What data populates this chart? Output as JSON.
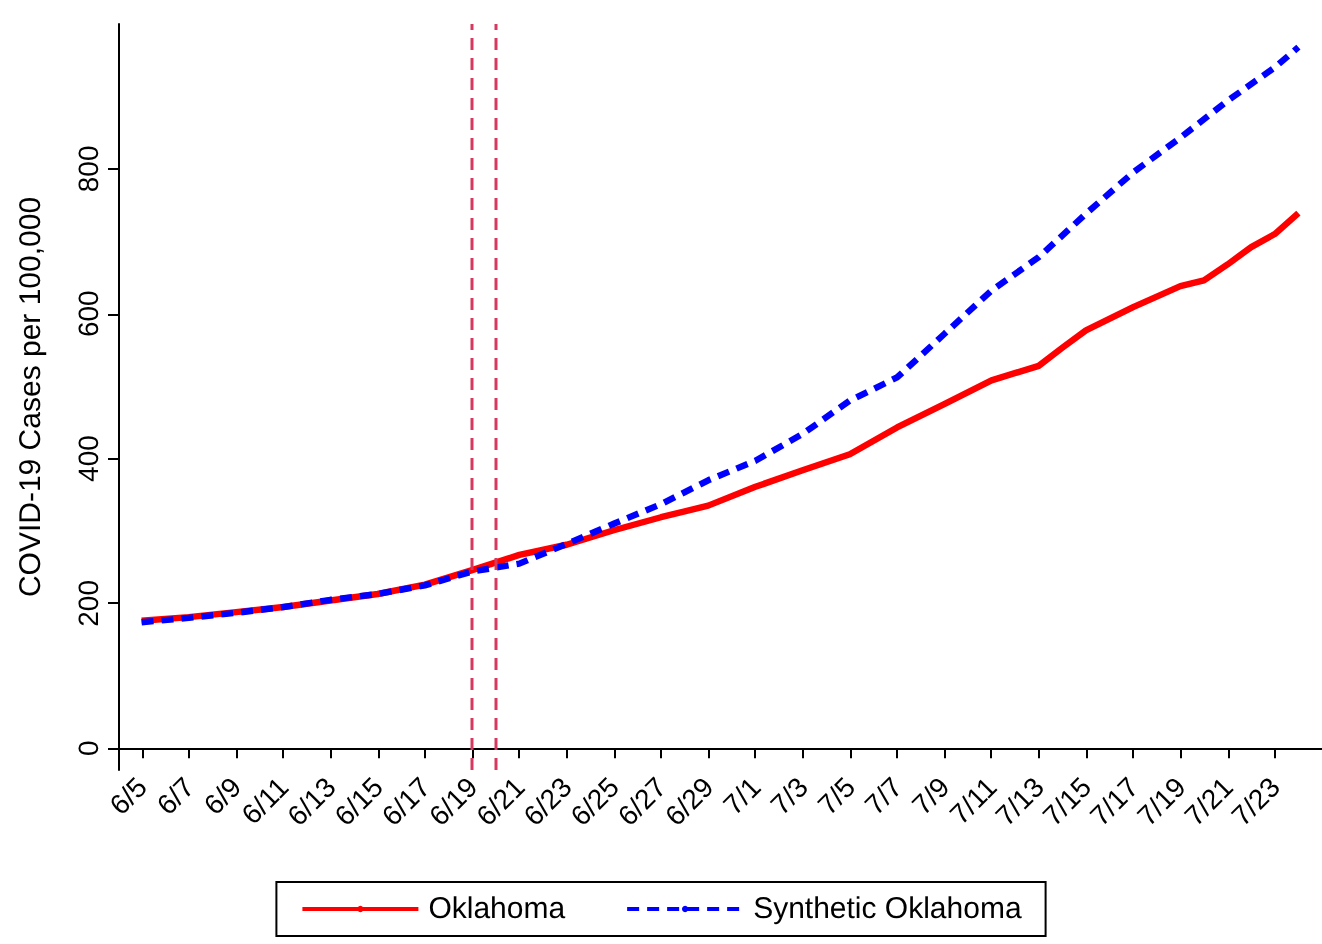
{
  "chart_data": {
    "type": "line",
    "ylabel": "COVID-19 Cases per 100,000",
    "series": [
      {
        "name": "Oklahoma",
        "color": "#ff0000",
        "line_style": "solid",
        "x": [
          "--06-05",
          "--06-07",
          "--06-09",
          "--06-11",
          "--06-13",
          "--06-15",
          "--06-17",
          "--06-19",
          "--06-21",
          "--06-23",
          "--06-25",
          "--06-27",
          "--06-29",
          "--07-01",
          "--07-03",
          "--07-05",
          "--07-07",
          "--07-09",
          "--07-11",
          "--07-13",
          "--07-14",
          "--07-15",
          "--07-17",
          "--07-19",
          "--07-20",
          "--07-21",
          "--07-22",
          "--07-23",
          "--07-24"
        ],
        "values": [
          176,
          181,
          188,
          195,
          204,
          213,
          226,
          246,
          267,
          281,
          301,
          319,
          335,
          361,
          384,
          406,
          443,
          475,
          508,
          528,
          553,
          577,
          609,
          638,
          646,
          668,
          692,
          710,
          739
        ]
      },
      {
        "name": "Synthetic Oklahoma",
        "color": "#0000ff",
        "line_style": "dashed",
        "x": [
          "--06-05",
          "--06-07",
          "--06-09",
          "--06-11",
          "--06-13",
          "--06-15",
          "--06-17",
          "--06-19",
          "--06-21",
          "--06-23",
          "--06-25",
          "--06-27",
          "--06-29",
          "--07-01",
          "--07-03",
          "--07-05",
          "--07-07",
          "--07-09",
          "--07-11",
          "--07-13",
          "--07-15",
          "--07-17",
          "--07-19",
          "--07-21",
          "--07-23",
          "--07-24"
        ],
        "values": [
          174,
          180,
          187,
          195,
          205,
          213,
          225,
          244,
          255,
          282,
          310,
          337,
          370,
          397,
          434,
          480,
          512,
          572,
          632,
          678,
          738,
          795,
          843,
          894,
          940,
          968
        ]
      }
    ],
    "xlim": [
      "--06-04",
      "--07-25"
    ],
    "xticks": [
      {
        "value": "--06-05",
        "label": "6/5"
      },
      {
        "value": "--06-07",
        "label": "6/7"
      },
      {
        "value": "--06-09",
        "label": "6/9"
      },
      {
        "value": "--06-11",
        "label": "6/11"
      },
      {
        "value": "--06-13",
        "label": "6/13"
      },
      {
        "value": "--06-15",
        "label": "6/15"
      },
      {
        "value": "--06-17",
        "label": "6/17"
      },
      {
        "value": "--06-19",
        "label": "6/19"
      },
      {
        "value": "--06-21",
        "label": "6/21"
      },
      {
        "value": "--06-23",
        "label": "6/23"
      },
      {
        "value": "--06-25",
        "label": "6/25"
      },
      {
        "value": "--06-27",
        "label": "6/27"
      },
      {
        "value": "--06-29",
        "label": "6/29"
      },
      {
        "value": "--07-01",
        "label": "7/1"
      },
      {
        "value": "--07-03",
        "label": "7/3"
      },
      {
        "value": "--07-05",
        "label": "7/5"
      },
      {
        "value": "--07-07",
        "label": "7/7"
      },
      {
        "value": "--07-09",
        "label": "7/9"
      },
      {
        "value": "--07-11",
        "label": "7/11"
      },
      {
        "value": "--07-13",
        "label": "7/13"
      },
      {
        "value": "--07-15",
        "label": "7/15"
      },
      {
        "value": "--07-17",
        "label": "7/17"
      },
      {
        "value": "--07-19",
        "label": "7/19"
      },
      {
        "value": "--07-21",
        "label": "7/21"
      },
      {
        "value": "--07-23",
        "label": "7/23"
      }
    ],
    "ylim": [
      -30,
      1000
    ],
    "yticks": [
      0,
      200,
      400,
      600,
      800
    ],
    "ref_lines": [
      {
        "axis": "x",
        "value": "--06-19",
        "color": "#d6385f",
        "line_style": "dashed"
      },
      {
        "axis": "x",
        "value": "--06-20",
        "color": "#d6385f",
        "line_style": "dashed"
      }
    ],
    "grid": false,
    "legend": "bottom",
    "marker": "none"
  }
}
